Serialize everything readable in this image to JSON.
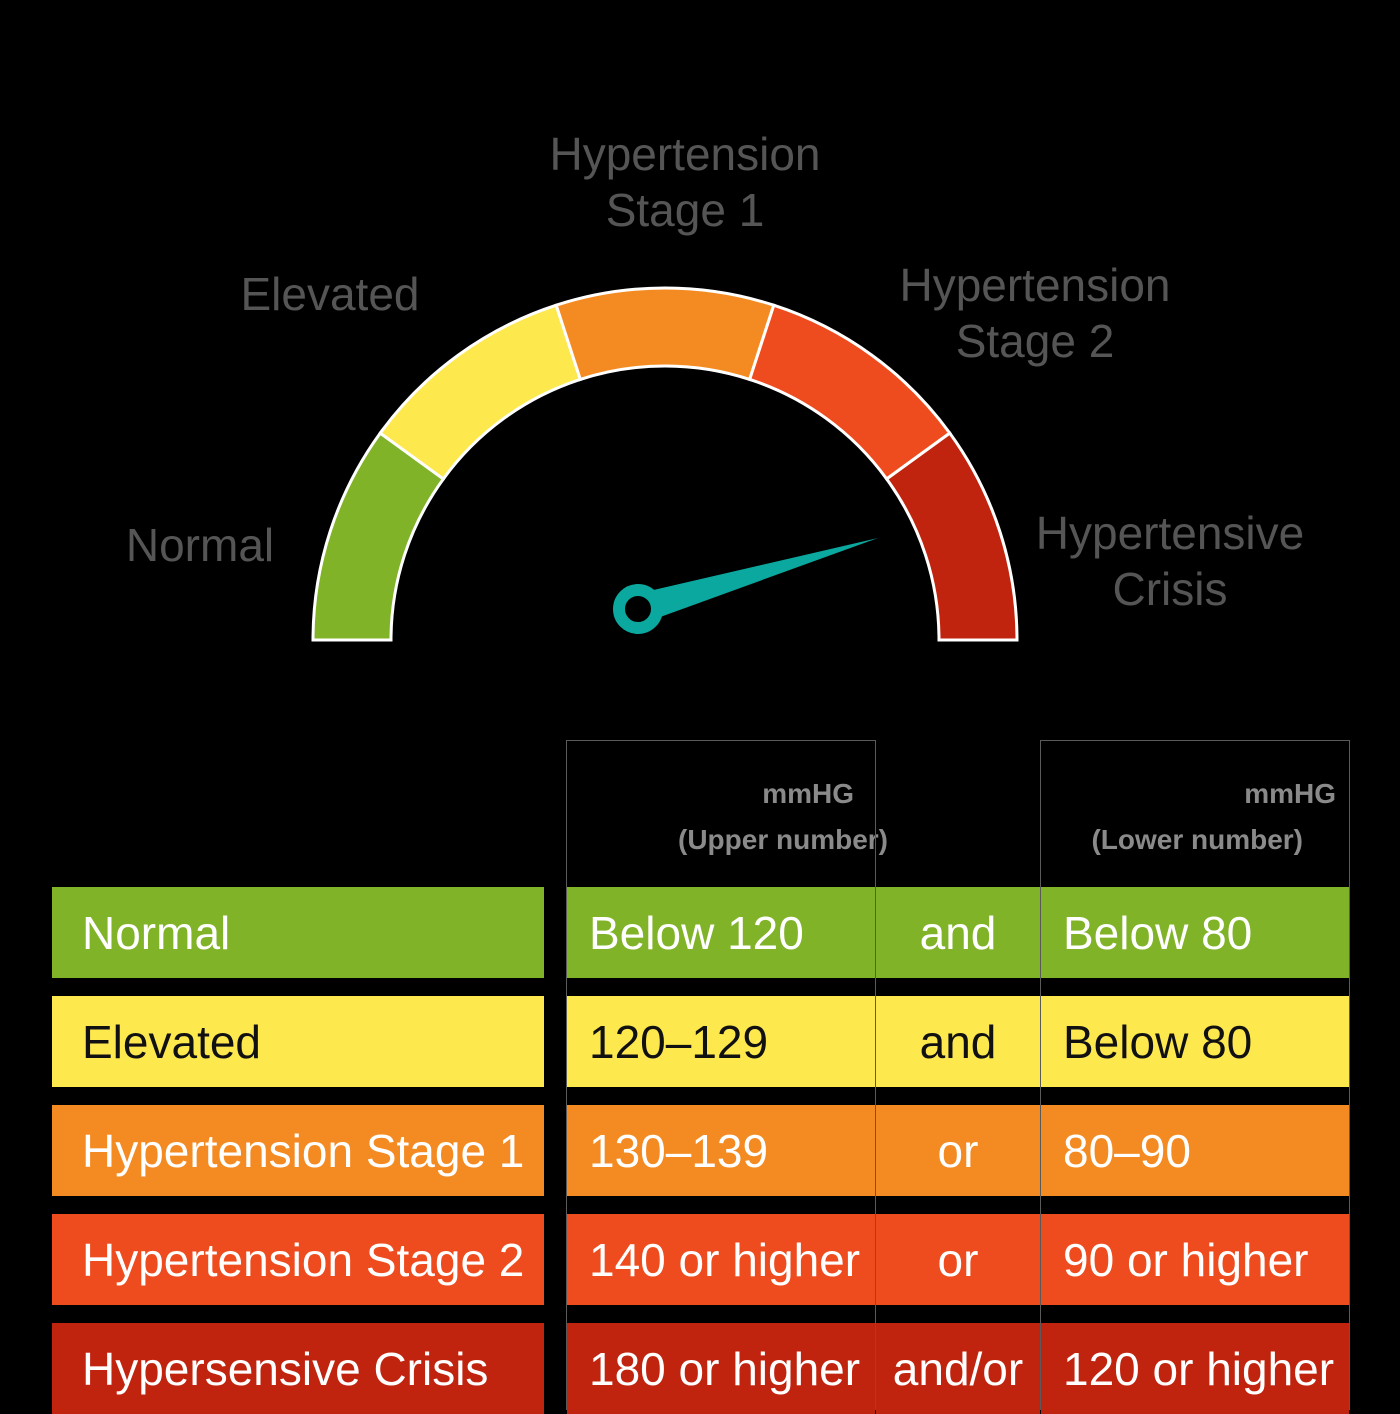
{
  "colors": {
    "background": "#000000",
    "normal": "#80b327",
    "elevated": "#fde84e",
    "stage1": "#f48b22",
    "stage2": "#ee4b1e",
    "crisis": "#c0240f",
    "needle": "#0aa89e",
    "gauge_label": "#555555",
    "header_text": "#8a8a8a"
  },
  "gauge": {
    "labels": {
      "normal": "Normal",
      "elevated": "Elevated",
      "stage1": [
        "Hypertension",
        "Stage 1"
      ],
      "stage2": [
        "Hypertension",
        "Stage 2"
      ],
      "crisis": [
        "Hypertensive",
        "Crisis"
      ]
    },
    "segments": [
      "normal",
      "elevated",
      "stage1",
      "stage2",
      "crisis"
    ],
    "needle_category": "crisis"
  },
  "table": {
    "upper_header": {
      "unit": "mmHG",
      "label": "(Upper number)"
    },
    "lower_header": {
      "unit": "mmHG",
      "label": "(Lower number)"
    },
    "rows": [
      {
        "category": "Normal",
        "upper": "Below 120",
        "op": "and",
        "lower": "Below 80",
        "bg": "#80b327",
        "fg": "#ffffff"
      },
      {
        "category": "Elevated",
        "upper": "120–129",
        "op": "and",
        "lower": "Below 80",
        "bg": "#fde84e",
        "fg": "#111111"
      },
      {
        "category": "Hypertension Stage 1",
        "upper": "130–139",
        "op": "or",
        "lower": "80–90",
        "bg": "#f48b22",
        "fg": "#ffffff"
      },
      {
        "category": "Hypertension Stage 2",
        "upper": "140 or higher",
        "op": "or",
        "lower": "90 or higher",
        "bg": "#ee4b1e",
        "fg": "#ffffff"
      },
      {
        "category": "Hypersensive Crisis",
        "upper": "180 or higher",
        "op": "and/or",
        "lower": "120 or higher",
        "bg": "#c0240f",
        "fg": "#ffffff"
      }
    ]
  }
}
